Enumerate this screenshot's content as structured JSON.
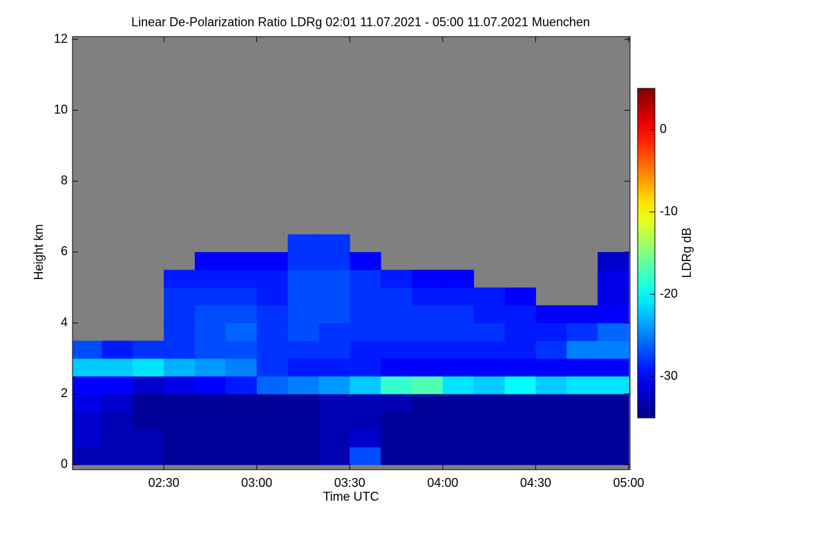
{
  "chart_data": {
    "type": "heatmap",
    "title": "Linear De-Polarization Ratio LDRg   02:01 11.07.2021 - 05:00 11.07.2021 Muenchen",
    "x_label": "Time UTC",
    "y_label": "Height km",
    "colorbar_label": "LDRg dB",
    "x": [
      "02:05",
      "02:15",
      "02:25",
      "02:35",
      "02:45",
      "02:55",
      "03:05",
      "03:15",
      "03:25",
      "03:35",
      "03:45",
      "03:55",
      "04:05",
      "04:15",
      "04:25",
      "04:35",
      "04:45",
      "04:55"
    ],
    "y": [
      0.25,
      0.75,
      1.25,
      1.75,
      2.25,
      2.75,
      3.25,
      3.75,
      4.25,
      4.75,
      5.25,
      5.75,
      6.25
    ],
    "z": [
      [
        -33,
        -33,
        -33,
        -34,
        -34,
        -34,
        -34,
        -34,
        -33,
        -27,
        -34,
        -34,
        -34,
        -34,
        -34,
        -34,
        -34,
        -34
      ],
      [
        -32,
        -33,
        -33,
        -34,
        -34,
        -34,
        -34,
        -34,
        -33,
        -32,
        -34,
        -34,
        -34,
        -34,
        -34,
        -34,
        -34,
        -34
      ],
      [
        -32,
        -33,
        -34,
        -34,
        -34,
        -34,
        -34,
        -34,
        -33,
        -33,
        -34,
        -34,
        -34,
        -34,
        -34,
        -34,
        -34,
        -34
      ],
      [
        -31,
        -32,
        -34,
        -34,
        -34,
        -34,
        -34,
        -34,
        -33,
        -33,
        -33,
        -34,
        -34,
        -34,
        -34,
        -34,
        -34,
        -34
      ],
      [
        -30,
        -30,
        -32,
        -31,
        -30,
        -29,
        -26,
        -25,
        -24,
        -22,
        -18,
        -17,
        -21,
        -22,
        -20,
        -22,
        -21,
        -21
      ],
      [
        -22,
        -22,
        -21,
        -23,
        -24,
        -25,
        -28,
        -29,
        -29,
        -29,
        -30,
        -30,
        -30,
        -30,
        -30,
        -30,
        -30,
        -30
      ],
      [
        -27,
        -29,
        -28,
        -28,
        -27,
        -27,
        -28,
        -28,
        -28,
        -29,
        -29,
        -29,
        -29,
        -29,
        -29,
        -28,
        -25,
        -25
      ],
      [
        null,
        null,
        null,
        -28,
        -27,
        -26,
        -28,
        -27,
        -28,
        -28,
        -28,
        -28,
        -28,
        -28,
        -29,
        -29,
        -28,
        -26
      ],
      [
        null,
        null,
        null,
        -28,
        -27,
        -27,
        -28,
        -27,
        -27,
        -28,
        -28,
        -28,
        -28,
        -29,
        -29,
        -30,
        -30,
        -30
      ],
      [
        null,
        null,
        null,
        -28,
        -28,
        -28,
        -29,
        -27,
        -27,
        -28,
        -28,
        -29,
        -29,
        -29,
        -30,
        null,
        null,
        -31
      ],
      [
        null,
        null,
        null,
        -29,
        -29,
        -29,
        -29,
        -27,
        -27,
        -28,
        -29,
        -30,
        -30,
        null,
        null,
        null,
        null,
        -31
      ],
      [
        null,
        null,
        null,
        null,
        -30,
        -30,
        -30,
        -28,
        -28,
        -30,
        null,
        null,
        null,
        null,
        null,
        null,
        null,
        -32
      ],
      [
        null,
        null,
        null,
        null,
        null,
        null,
        null,
        -28,
        -28,
        null,
        null,
        null,
        null,
        null,
        null,
        null,
        null,
        null
      ]
    ],
    "xlim": [
      "02:01",
      "05:00"
    ],
    "xticks": [
      "02:30",
      "03:00",
      "03:30",
      "04:00",
      "04:30",
      "05:00"
    ],
    "ylim": [
      -0.14,
      12.08
    ],
    "yticks": [
      0,
      2,
      4,
      6,
      8,
      10,
      12
    ],
    "zlim": [
      -35,
      5
    ],
    "zticks": [
      0,
      -10,
      -20,
      -30
    ],
    "colormap": "jet",
    "nodata_color": "#808080"
  }
}
